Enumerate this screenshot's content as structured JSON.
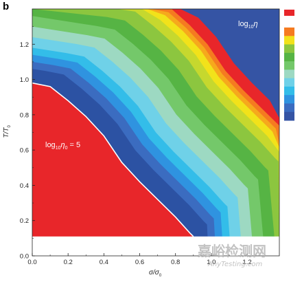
{
  "panel_label": "b",
  "chart_data": {
    "type": "heatmap",
    "xlabel": {
      "main": "σ/σ",
      "sub": "0"
    },
    "ylabel": {
      "main": "T/T",
      "sub": "0"
    },
    "xlim": [
      0.0,
      1.38
    ],
    "ylim": [
      0.0,
      1.4
    ],
    "x_ticks": [
      "0.0",
      "0.2",
      "0.4",
      "0.6",
      "0.8",
      "1.0",
      "1.2"
    ],
    "y_ticks": [
      "0.0",
      "0.2",
      "0.4",
      "0.6",
      "0.8",
      "1.0",
      "1.2"
    ],
    "data_floor_T": 0.11,
    "colorbar_label": {
      "pre": "log",
      "sub": "10",
      "post": "η"
    },
    "annotation": {
      "pre": "log",
      "sub1": "10",
      "mid": "η",
      "sub2": "0",
      "post": " = 5"
    },
    "region_boundary_sigma_over_T": [
      [
        0.0,
        0.98
      ],
      [
        0.1,
        0.96
      ],
      [
        0.2,
        0.88
      ],
      [
        0.3,
        0.79
      ],
      [
        0.4,
        0.68
      ],
      [
        0.5,
        0.53
      ],
      [
        0.6,
        0.42
      ],
      [
        0.7,
        0.32
      ],
      [
        0.8,
        0.22
      ],
      [
        0.88,
        0.13
      ],
      [
        0.9,
        0.11
      ]
    ],
    "levels": [
      {
        "offset": 0.08,
        "color": "#2c52a3"
      },
      {
        "offset": 0.12,
        "color": "#3b6cc0"
      },
      {
        "offset": 0.16,
        "color": "#2f93e0"
      },
      {
        "offset": 0.2,
        "color": "#33bde9"
      },
      {
        "offset": 0.26,
        "color": "#6fd1e8"
      },
      {
        "offset": 0.32,
        "color": "#9dd9c2"
      },
      {
        "offset": 0.38,
        "color": "#74c86a"
      },
      {
        "offset": 0.44,
        "color": "#56b444"
      },
      {
        "offset": 0.5,
        "color": "#8cc63f"
      },
      {
        "offset": 0.54,
        "color": "#c6d82e"
      },
      {
        "offset": 0.57,
        "color": "#f2e21a"
      },
      {
        "offset": 0.59,
        "color": "#f6a91c"
      },
      {
        "offset": 0.61,
        "color": "#f57b20"
      },
      {
        "offset": 0.66,
        "color": "#e8262a"
      }
    ],
    "background_color": "#3554a4",
    "region_color": "#e8262a",
    "colorbar_colors": [
      "#e8262a",
      "#f57b20",
      "#f2e21a",
      "#8cc63f",
      "#56b444",
      "#74c86a",
      "#9dd9c2",
      "#6fd1e8",
      "#33bde9",
      "#2f93e0",
      "#3b6cc0",
      "#3554a4"
    ]
  },
  "watermark": {
    "line1": "嘉峪检测网",
    "line2": "AnyTesting.com"
  }
}
